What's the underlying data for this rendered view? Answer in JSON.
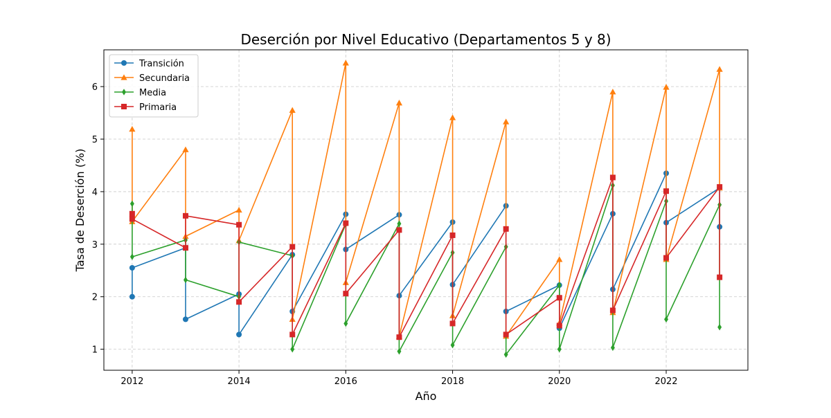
{
  "chart_data": {
    "type": "line",
    "title": "Deserción por Nivel Educativo (Departamentos 5 y 8)",
    "xlabel": "Año",
    "ylabel": "Tasa de Deserción (%)",
    "xlim": [
      2011.47,
      2023.53
    ],
    "ylim": [
      0.6,
      6.7
    ],
    "xticks": [
      2012,
      2014,
      2016,
      2018,
      2020,
      2022
    ],
    "yticks": [
      1,
      2,
      3,
      4,
      5,
      6
    ],
    "grid": true,
    "legend_position": "top-left",
    "series": [
      {
        "name": "Transición",
        "color": "#1f77b4",
        "marker": "circle",
        "points": [
          [
            2012,
            2.0
          ],
          [
            2012,
            2.55
          ],
          [
            2013,
            2.93
          ],
          [
            2013,
            1.57
          ],
          [
            2014,
            2.05
          ],
          [
            2014,
            1.28
          ],
          [
            2015,
            2.8
          ],
          [
            2015,
            1.72
          ],
          [
            2016,
            3.57
          ],
          [
            2016,
            2.9
          ],
          [
            2017,
            3.56
          ],
          [
            2017,
            2.02
          ],
          [
            2018,
            3.42
          ],
          [
            2018,
            2.23
          ],
          [
            2019,
            3.73
          ],
          [
            2019,
            1.72
          ],
          [
            2020,
            2.22
          ],
          [
            2020,
            1.4
          ],
          [
            2021,
            3.58
          ],
          [
            2021,
            2.14
          ],
          [
            2022,
            4.35
          ],
          [
            2022,
            3.41
          ],
          [
            2023,
            4.07
          ],
          [
            2023,
            3.33
          ]
        ]
      },
      {
        "name": "Secundaria",
        "color": "#ff7f0e",
        "marker": "triangle",
        "points": [
          [
            2012,
            5.19
          ],
          [
            2012,
            3.43
          ],
          [
            2013,
            4.8
          ],
          [
            2013,
            3.15
          ],
          [
            2014,
            3.65
          ],
          [
            2014,
            3.07
          ],
          [
            2015,
            5.55
          ],
          [
            2015,
            1.57
          ],
          [
            2016,
            6.45
          ],
          [
            2016,
            2.27
          ],
          [
            2017,
            5.69
          ],
          [
            2017,
            1.24
          ],
          [
            2018,
            5.41
          ],
          [
            2018,
            1.64
          ],
          [
            2019,
            5.33
          ],
          [
            2019,
            1.25
          ],
          [
            2020,
            2.71
          ],
          [
            2020,
            1.5
          ],
          [
            2021,
            5.9
          ],
          [
            2021,
            1.7
          ],
          [
            2022,
            5.99
          ],
          [
            2022,
            2.71
          ],
          [
            2023,
            6.33
          ],
          [
            2023,
            4.07
          ]
        ]
      },
      {
        "name": "Media",
        "color": "#2ca02c",
        "marker": "diamond",
        "points": [
          [
            2012,
            3.77
          ],
          [
            2012,
            2.76
          ],
          [
            2013,
            3.08
          ],
          [
            2013,
            2.32
          ],
          [
            2014,
            2.0
          ],
          [
            2014,
            3.04
          ],
          [
            2015,
            2.78
          ],
          [
            2015,
            1.0
          ],
          [
            2016,
            3.38
          ],
          [
            2016,
            1.49
          ],
          [
            2017,
            3.39
          ],
          [
            2017,
            0.96
          ],
          [
            2018,
            2.84
          ],
          [
            2018,
            1.08
          ],
          [
            2019,
            2.95
          ],
          [
            2019,
            0.9
          ],
          [
            2020,
            2.22
          ],
          [
            2020,
            1.0
          ],
          [
            2021,
            4.12
          ],
          [
            2021,
            1.03
          ],
          [
            2022,
            3.82
          ],
          [
            2022,
            1.57
          ],
          [
            2023,
            3.75
          ],
          [
            2023,
            1.42
          ]
        ]
      },
      {
        "name": "Primaria",
        "color": "#d62728",
        "marker": "square",
        "points": [
          [
            2012,
            3.58
          ],
          [
            2012,
            3.48
          ],
          [
            2013,
            2.93
          ],
          [
            2013,
            3.54
          ],
          [
            2014,
            3.37
          ],
          [
            2014,
            1.9
          ],
          [
            2015,
            2.95
          ],
          [
            2015,
            1.28
          ],
          [
            2016,
            3.4
          ],
          [
            2016,
            2.06
          ],
          [
            2017,
            3.27
          ],
          [
            2017,
            1.23
          ],
          [
            2018,
            3.17
          ],
          [
            2018,
            1.49
          ],
          [
            2019,
            3.29
          ],
          [
            2019,
            1.28
          ],
          [
            2020,
            1.98
          ],
          [
            2020,
            1.45
          ],
          [
            2021,
            4.27
          ],
          [
            2021,
            1.74
          ],
          [
            2022,
            4.01
          ],
          [
            2022,
            2.74
          ],
          [
            2023,
            4.09
          ],
          [
            2023,
            2.37
          ]
        ]
      }
    ]
  }
}
